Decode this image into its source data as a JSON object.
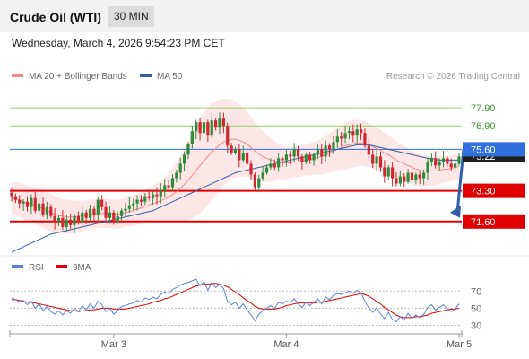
{
  "header": {
    "title": "Crude Oil (WTI)",
    "interval": "30 MIN"
  },
  "datetime": "Wednesday, March 4, 2026 9:54:23 PM CET",
  "legend": {
    "ma20": "MA 20 + Bollinger Bands",
    "ma50": "MA 50",
    "credit": "Research © 2026 Trading Central"
  },
  "rsi_legend": {
    "rsi": "RSI",
    "ma": "9MA"
  },
  "colors": {
    "up": "#2e8b3a",
    "down": "#d0262f",
    "ma20": "#f08a8a",
    "bands": "#fde2e2",
    "ma50": "#2f5fa8",
    "support": "#e00000",
    "resistance": "#8fcf6a",
    "pivot": "#2f6fe0",
    "rsi": "#5b84d6",
    "rsi_ma": "#e00000"
  },
  "chart_data": [
    {
      "type": "candlestick",
      "x_ticks": [
        "Mar 3",
        "Mar 4",
        "Mar 5"
      ],
      "ylim": [
        69.8,
        79.0
      ],
      "current_price": 75.22,
      "levels": [
        {
          "label": "77.90",
          "value": 77.9,
          "kind": "resistance"
        },
        {
          "label": "76.90",
          "value": 76.9,
          "kind": "resistance"
        },
        {
          "label": "75.60",
          "value": 75.6,
          "kind": "pivot"
        },
        {
          "label": "73.30",
          "value": 73.3,
          "kind": "support"
        },
        {
          "label": "71.60",
          "value": 71.6,
          "kind": "support"
        }
      ],
      "forecast_arrow": {
        "from": 75.6,
        "to": 71.6,
        "direction": "down"
      },
      "closes": [
        73.0,
        72.8,
        72.6,
        72.7,
        72.4,
        72.9,
        72.2,
        72.6,
        72.0,
        72.4,
        71.9,
        71.6,
        71.8,
        71.3,
        71.7,
        71.4,
        71.9,
        71.6,
        72.1,
        71.8,
        72.3,
        72.0,
        72.8,
        72.4,
        71.8,
        72.1,
        71.6,
        71.9,
        72.2,
        72.3,
        72.5,
        72.6,
        72.8,
        72.7,
        73.0,
        72.9,
        73.1,
        73.0,
        73.3,
        73.6,
        73.5,
        74.0,
        74.3,
        74.8,
        75.3,
        75.9,
        76.6,
        77.1,
        76.5,
        77.1,
        76.4,
        77.2,
        76.8,
        77.3,
        76.9,
        75.8,
        75.4,
        75.6,
        75.0,
        75.4,
        74.8,
        74.2,
        73.5,
        74.0,
        74.3,
        74.6,
        74.8,
        74.6,
        75.1,
        75.0,
        75.3,
        75.2,
        75.6,
        75.2,
        74.9,
        75.3,
        75.0,
        75.3,
        75.6,
        75.2,
        75.8,
        75.6,
        76.0,
        76.3,
        76.2,
        76.5,
        76.6,
        76.4,
        76.7,
        76.5,
        75.8,
        75.3,
        74.8,
        75.2,
        74.6,
        74.1,
        74.6,
        74.0,
        73.7,
        74.1,
        73.8,
        74.3,
        73.9,
        74.2,
        74.0,
        74.3,
        74.9,
        75.1,
        74.7,
        74.9,
        75.1,
        74.8,
        74.6,
        74.8,
        75.2
      ],
      "ma20": [
        72.9,
        72.85,
        72.8,
        72.7,
        72.6,
        72.55,
        72.5,
        72.4,
        72.3,
        72.2,
        72.1,
        72.0,
        71.95,
        71.9,
        71.85,
        71.85,
        71.85,
        71.9,
        71.9,
        71.95,
        72.0,
        72.0,
        72.05,
        72.05,
        72.05,
        72.05,
        72.0,
        72.0,
        72.05,
        72.1,
        72.15,
        72.2,
        72.3,
        72.35,
        72.45,
        72.5,
        72.6,
        72.65,
        72.75,
        72.85,
        72.95,
        73.1,
        73.25,
        73.45,
        73.65,
        73.9,
        74.15,
        74.45,
        74.7,
        74.95,
        75.2,
        75.45,
        75.65,
        75.85,
        76.0,
        76.1,
        76.15,
        76.15,
        76.1,
        76.0,
        75.9,
        75.7,
        75.5,
        75.35,
        75.2,
        75.1,
        75.0,
        74.95,
        74.9,
        74.85,
        74.85,
        74.85,
        74.9,
        74.9,
        74.95,
        75.0,
        75.05,
        75.1,
        75.15,
        75.2,
        75.3,
        75.4,
        75.5,
        75.6,
        75.7,
        75.8,
        75.85,
        75.9,
        75.95,
        75.95,
        75.9,
        75.85,
        75.75,
        75.65,
        75.55,
        75.4,
        75.3,
        75.15,
        75.0,
        74.9,
        74.8,
        74.7,
        74.6,
        74.5,
        74.45,
        74.4,
        74.4,
        74.4,
        74.4,
        74.45,
        74.5,
        74.5,
        74.55,
        74.6,
        74.65
      ],
      "ma50": [
        69.9,
        70.0,
        70.1,
        70.2,
        70.3,
        70.4,
        70.5,
        70.6,
        70.7,
        70.8,
        70.9,
        70.95,
        71.0,
        71.05,
        71.1,
        71.15,
        71.2,
        71.25,
        71.3,
        71.35,
        71.4,
        71.45,
        71.5,
        71.55,
        71.6,
        71.65,
        71.7,
        71.75,
        71.8,
        71.85,
        71.9,
        71.95,
        72.0,
        72.05,
        72.1,
        72.15,
        72.2,
        72.3,
        72.4,
        72.5,
        72.6,
        72.7,
        72.8,
        72.9,
        73.0,
        73.1,
        73.2,
        73.3,
        73.4,
        73.5,
        73.6,
        73.7,
        73.8,
        73.9,
        74.0,
        74.1,
        74.2,
        74.3,
        74.35,
        74.4,
        74.45,
        74.5,
        74.55,
        74.6,
        74.65,
        74.7,
        74.75,
        74.8,
        74.85,
        74.9,
        74.95,
        75.0,
        75.05,
        75.1,
        75.15,
        75.2,
        75.25,
        75.3,
        75.35,
        75.4,
        75.45,
        75.5,
        75.55,
        75.6,
        75.65,
        75.7,
        75.75,
        75.8,
        75.85,
        75.85,
        75.85,
        75.85,
        75.8,
        75.75,
        75.7,
        75.65,
        75.6,
        75.55,
        75.5,
        75.45,
        75.4,
        75.35,
        75.3,
        75.25,
        75.2,
        75.15,
        75.1,
        75.1,
        75.05,
        75.0,
        75.0,
        75.0,
        75.0,
        75.0,
        75.0
      ],
      "band_width": [
        0.9,
        0.9,
        0.95,
        0.95,
        1.0,
        1.0,
        1.0,
        1.05,
        1.05,
        1.05,
        1.05,
        1.0,
        1.0,
        0.95,
        0.95,
        0.9,
        0.9,
        0.85,
        0.85,
        0.8,
        0.8,
        0.8,
        0.8,
        0.8,
        0.8,
        0.8,
        0.8,
        0.8,
        0.8,
        0.8,
        0.8,
        0.85,
        0.85,
        0.9,
        0.9,
        0.95,
        1.0,
        1.05,
        1.1,
        1.2,
        1.3,
        1.45,
        1.6,
        1.8,
        2.0,
        2.2,
        2.4,
        2.55,
        2.65,
        2.7,
        2.7,
        2.65,
        2.6,
        2.5,
        2.4,
        2.3,
        2.2,
        2.1,
        2.0,
        1.9,
        1.8,
        1.7,
        1.6,
        1.5,
        1.4,
        1.3,
        1.2,
        1.1,
        1.0,
        0.95,
        0.9,
        0.85,
        0.85,
        0.85,
        0.85,
        0.85,
        0.9,
        0.9,
        0.95,
        1.0,
        1.05,
        1.1,
        1.15,
        1.2,
        1.25,
        1.3,
        1.3,
        1.3,
        1.3,
        1.25,
        1.25,
        1.2,
        1.2,
        1.15,
        1.15,
        1.1,
        1.1,
        1.05,
        1.05,
        1.0,
        1.0,
        0.95,
        0.95,
        0.9,
        0.9,
        0.85,
        0.85,
        0.8,
        0.8,
        0.75,
        0.75,
        0.7,
        0.7,
        0.7,
        0.7
      ]
    },
    {
      "type": "line",
      "name": "RSI",
      "ylim": [
        20,
        85
      ],
      "y_ticks": [
        70,
        50,
        30
      ],
      "rsi": [
        62,
        60,
        57,
        59,
        54,
        58,
        50,
        55,
        47,
        52,
        46,
        43,
        47,
        42,
        47,
        44,
        50,
        46,
        53,
        48,
        55,
        50,
        58,
        54,
        46,
        50,
        43,
        47,
        52,
        53,
        55,
        56,
        59,
        57,
        62,
        60,
        63,
        61,
        66,
        69,
        67,
        72,
        74,
        77,
        79,
        80,
        82,
        84,
        76,
        81,
        71,
        80,
        74,
        78,
        73,
        58,
        54,
        57,
        50,
        55,
        48,
        42,
        35,
        43,
        47,
        50,
        53,
        50,
        57,
        55,
        58,
        57,
        61,
        55,
        51,
        57,
        53,
        57,
        61,
        55,
        63,
        60,
        65,
        67,
        66,
        68,
        70,
        67,
        71,
        68,
        58,
        50,
        45,
        51,
        43,
        38,
        45,
        37,
        34,
        40,
        36,
        44,
        38,
        42,
        39,
        43,
        51,
        54,
        48,
        51,
        54,
        49,
        46,
        49,
        55
      ],
      "rsi_ma": [
        60,
        60,
        59,
        58,
        57,
        57,
        56,
        55,
        54,
        53,
        52,
        51,
        50,
        49,
        48,
        47,
        47,
        46,
        47,
        47,
        48,
        48,
        49,
        50,
        50,
        50,
        49,
        49,
        49,
        49,
        50,
        51,
        52,
        53,
        54,
        55,
        57,
        58,
        59,
        61,
        62,
        64,
        66,
        68,
        70,
        72,
        74,
        76,
        77,
        78,
        78,
        79,
        79,
        78,
        77,
        75,
        72,
        69,
        66,
        62,
        59,
        56,
        52,
        50,
        49,
        49,
        49,
        49,
        50,
        51,
        53,
        54,
        55,
        56,
        56,
        56,
        56,
        56,
        57,
        57,
        58,
        59,
        60,
        61,
        62,
        63,
        64,
        65,
        66,
        67,
        66,
        64,
        61,
        58,
        55,
        51,
        48,
        45,
        42,
        40,
        39,
        39,
        39,
        40,
        40,
        41,
        42,
        44,
        45,
        46,
        47,
        48,
        49,
        49,
        50
      ]
    }
  ]
}
